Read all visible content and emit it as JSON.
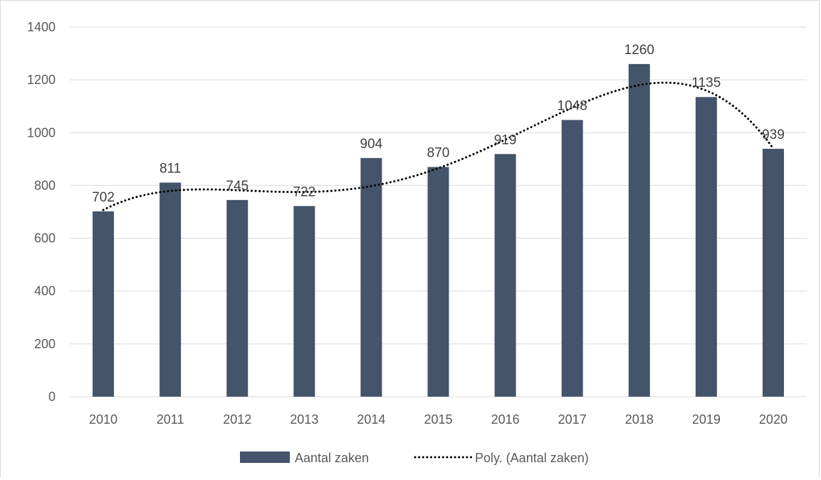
{
  "chart_data": {
    "type": "bar",
    "categories": [
      "2010",
      "2011",
      "2012",
      "2013",
      "2014",
      "2015",
      "2016",
      "2017",
      "2018",
      "2019",
      "2020"
    ],
    "series": [
      {
        "name": "Aantal zaken",
        "values": [
          702,
          811,
          745,
          722,
          904,
          870,
          919,
          1048,
          1260,
          1135,
          939
        ],
        "color": "#44546a"
      }
    ],
    "trendline": {
      "name": "Poly. (Aantal zaken)",
      "style": "dotted",
      "color": "#000000"
    },
    "data_labels": [
      "702",
      "811",
      "745",
      "722",
      "904",
      "870",
      "919",
      "1048",
      "1260",
      "1135",
      "939"
    ],
    "y_ticks": [
      "0",
      "200",
      "400",
      "600",
      "800",
      "1000",
      "1200",
      "1400"
    ],
    "ylim": [
      0,
      1400
    ],
    "grid": true,
    "legend_position": "bottom",
    "legend": {
      "bar_label": "Aantal zaken",
      "trend_label": "Poly. (Aantal zaken)"
    }
  }
}
